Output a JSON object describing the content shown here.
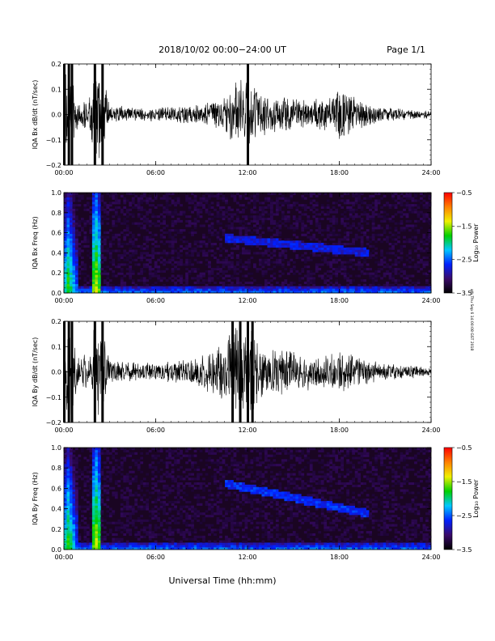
{
  "header": {
    "title": "2018/10/02   00:00−24:00  UT",
    "page": "Page 1/1"
  },
  "side_note": "ath Thu Sep 6 14:00:08 GST 2018",
  "x_axis_label": "Universal Time (hh:mm)",
  "colors": {
    "waveform": "#000000",
    "spectrogram_bg": "#1a0522",
    "colorbar": [
      "#000000",
      "#3a0a6a",
      "#0020ff",
      "#00c8ff",
      "#00d000",
      "#f0f000",
      "#ff8000",
      "#ff0000"
    ]
  },
  "chart_data": [
    {
      "type": "line",
      "panel": "bx-waveform",
      "ylabel": "IQA Bx dB/dt (nT/sec)",
      "xlim": [
        0,
        24
      ],
      "ylim": [
        -0.2,
        0.2
      ],
      "x_ticks": [
        "00:00",
        "06:00",
        "12:00",
        "18:00",
        "24:00"
      ],
      "y_ticks": [
        "0.2",
        "0.1",
        "0.0",
        "−0.1",
        "−0.2"
      ],
      "envelope_x_hours": [
        0,
        0.3,
        0.5,
        1.0,
        1.3,
        1.6,
        2.0,
        2.5,
        3.0,
        4.0,
        5.0,
        6.0,
        7.0,
        8.0,
        9.0,
        10.0,
        10.5,
        11.0,
        11.5,
        12.0,
        12.3,
        12.7,
        13.5,
        14.5,
        15.5,
        16.5,
        17.5,
        18.0,
        19.0,
        20.0,
        21.0,
        22.0,
        23.0,
        24.0
      ],
      "envelope_amplitude": [
        0.2,
        0.2,
        0.2,
        0.04,
        0.07,
        0.045,
        0.2,
        0.2,
        0.04,
        0.035,
        0.03,
        0.03,
        0.035,
        0.04,
        0.05,
        0.07,
        0.09,
        0.12,
        0.15,
        0.2,
        0.13,
        0.1,
        0.08,
        0.08,
        0.06,
        0.07,
        0.08,
        0.13,
        0.07,
        0.05,
        0.035,
        0.025,
        0.02,
        0.015
      ]
    },
    {
      "type": "heatmap",
      "panel": "bx-spectrogram",
      "ylabel": "IQA Bx Freq (Hz)",
      "xlim": [
        0,
        24
      ],
      "ylim": [
        0.0,
        1.0
      ],
      "x_ticks": [
        "00:00",
        "06:00",
        "12:00",
        "18:00",
        "24:00"
      ],
      "y_ticks": [
        "1.0",
        "0.8",
        "0.6",
        "0.4",
        "0.2",
        "0.0"
      ],
      "colorbar_label": "Log₁₀ Power",
      "colorbar_ticks": [
        "−0.5",
        "−1.5",
        "−2.5",
        "−3.5"
      ],
      "colorbar_range": [
        -3.5,
        -0.5
      ],
      "features": [
        {
          "name": "broadband burst",
          "x_hours": 0.3,
          "width_hours": 0.6,
          "level": -1.8
        },
        {
          "name": "broadband burst",
          "x_hours": 2.1,
          "width_hours": 0.25,
          "level": -1.5
        },
        {
          "name": "pulsation band",
          "x_start_hours": 10.5,
          "x_end_hours": 20.0,
          "f_start_hz": 0.55,
          "f_end_hz": 0.4,
          "level": -2.9
        },
        {
          "name": "low frequency band",
          "x_start_hours": 0,
          "x_end_hours": 24,
          "f_max_hz": 0.06,
          "level": -2.6
        }
      ]
    },
    {
      "type": "line",
      "panel": "by-waveform",
      "ylabel": "IQA By dB/dt (nT/sec)",
      "xlim": [
        0,
        24
      ],
      "ylim": [
        -0.2,
        0.2
      ],
      "x_ticks": [
        "00:00",
        "06:00",
        "12:00",
        "18:00",
        "24:00"
      ],
      "y_ticks": [
        "0.2",
        "0.1",
        "0.0",
        "−0.1",
        "−0.2"
      ],
      "envelope_x_hours": [
        0,
        0.3,
        0.5,
        1.0,
        1.3,
        1.6,
        2.0,
        2.5,
        3.0,
        4.0,
        5.0,
        6.0,
        7.0,
        8.0,
        9.0,
        10.0,
        10.5,
        11.0,
        11.5,
        12.0,
        12.3,
        12.7,
        13.5,
        14.5,
        15.5,
        16.5,
        17.5,
        18.0,
        19.0,
        20.0,
        21.0,
        22.0,
        23.0,
        24.0
      ],
      "envelope_amplitude": [
        0.2,
        0.2,
        0.2,
        0.05,
        0.08,
        0.05,
        0.2,
        0.2,
        0.05,
        0.045,
        0.04,
        0.04,
        0.045,
        0.05,
        0.07,
        0.1,
        0.15,
        0.2,
        0.2,
        0.2,
        0.2,
        0.12,
        0.1,
        0.09,
        0.08,
        0.07,
        0.08,
        0.09,
        0.07,
        0.05,
        0.035,
        0.03,
        0.025,
        0.02
      ]
    },
    {
      "type": "heatmap",
      "panel": "by-spectrogram",
      "ylabel": "IQA By Freq (Hz)",
      "xlim": [
        0,
        24
      ],
      "ylim": [
        0.0,
        1.0
      ],
      "x_ticks": [
        "00:00",
        "06:00",
        "12:00",
        "18:00",
        "24:00"
      ],
      "y_ticks": [
        "1.0",
        "0.8",
        "0.6",
        "0.4",
        "0.2",
        "0.0"
      ],
      "colorbar_label": "Log₁₀ Power",
      "colorbar_ticks": [
        "−0.5",
        "−1.5",
        "−2.5",
        "−3.5"
      ],
      "colorbar_range": [
        -3.5,
        -0.5
      ],
      "features": [
        {
          "name": "broadband burst",
          "x_hours": 0.3,
          "width_hours": 0.6,
          "level": -1.8
        },
        {
          "name": "broadband burst",
          "x_hours": 2.1,
          "width_hours": 0.25,
          "level": -1.5
        },
        {
          "name": "pulsation band",
          "x_start_hours": 10.5,
          "x_end_hours": 20.0,
          "f_start_hz": 0.65,
          "f_end_hz": 0.35,
          "level": -2.8
        },
        {
          "name": "low frequency band",
          "x_start_hours": 0,
          "x_end_hours": 24,
          "f_max_hz": 0.06,
          "level": -2.6
        }
      ]
    }
  ]
}
